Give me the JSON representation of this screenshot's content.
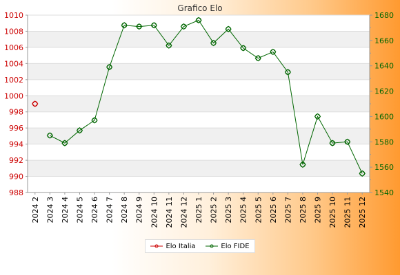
{
  "chart_data": {
    "type": "line",
    "title": "Grafico Elo",
    "categories": [
      "2024 2",
      "2024 3",
      "2024 4",
      "2024 5",
      "2024 6",
      "2024 7",
      "2024 8",
      "2024 9",
      "2024 10",
      "2024 11",
      "2024 12",
      "2025 1",
      "2025 2",
      "2025 3",
      "2025 4",
      "2025 5",
      "2025 6",
      "2025 7",
      "2025 8",
      "2025 9",
      "2025 10",
      "2025 11",
      "2025 12"
    ],
    "left_axis": {
      "ylim": [
        988,
        1010
      ],
      "ticks": [
        988,
        990,
        992,
        994,
        996,
        998,
        1000,
        1002,
        1004,
        1006,
        1008,
        1010
      ],
      "color": "#cc0000"
    },
    "right_axis": {
      "ylim": [
        1540,
        1680
      ],
      "ticks": [
        1540,
        1560,
        1580,
        1600,
        1620,
        1640,
        1660,
        1680
      ],
      "color": "#006600"
    },
    "series": [
      {
        "name": "Elo Italia",
        "axis": "left",
        "color": "#cc0000",
        "values": [
          999,
          null,
          null,
          null,
          null,
          null,
          null,
          null,
          null,
          null,
          null,
          null,
          null,
          null,
          null,
          null,
          null,
          null,
          null,
          null,
          null,
          null,
          null
        ]
      },
      {
        "name": "Elo FIDE",
        "axis": "right",
        "color": "#006600",
        "values": [
          null,
          1585,
          1579,
          1589,
          1597,
          1639,
          1672,
          1671,
          1672,
          1656,
          1671,
          1676,
          1658,
          1669,
          1654,
          1646,
          1651,
          1635,
          1562,
          1600,
          1579,
          1580,
          1555
        ]
      }
    ],
    "legend_position": "bottom-center",
    "grid": true
  }
}
